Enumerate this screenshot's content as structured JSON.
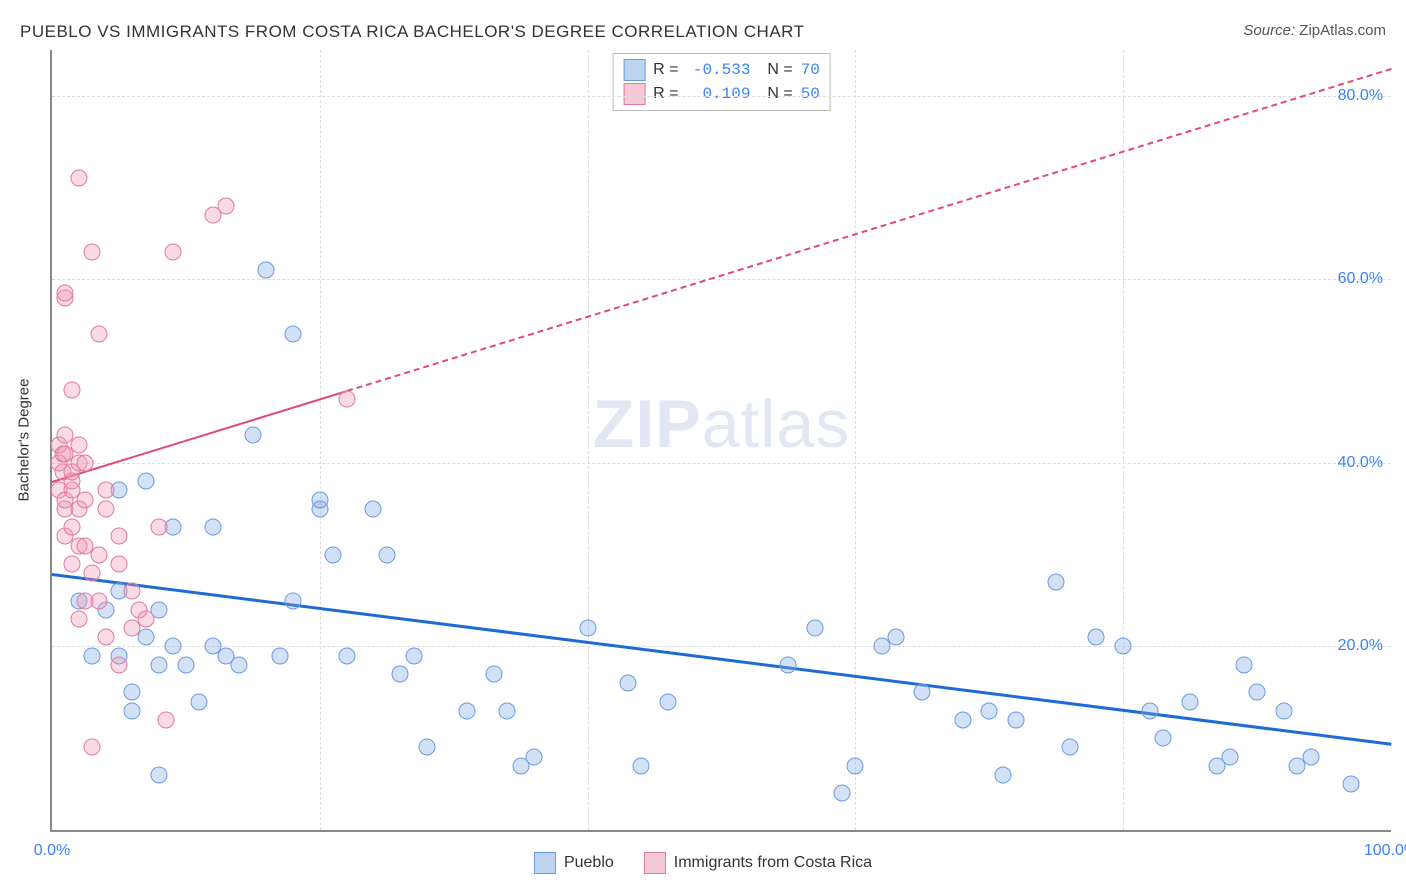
{
  "title": "PUEBLO VS IMMIGRANTS FROM COSTA RICA BACHELOR'S DEGREE CORRELATION CHART",
  "source_label": "Source:",
  "source_value": "ZipAtlas.com",
  "ylabel": "Bachelor's Degree",
  "watermark_bold": "ZIP",
  "watermark_rest": "atlas",
  "chart": {
    "type": "scatter",
    "background_color": "#ffffff",
    "grid_color": "#dddddd",
    "axis_color": "#888888",
    "xlim": [
      0,
      100
    ],
    "ylim": [
      0,
      85
    ],
    "xtick_min_label": "0.0%",
    "xtick_max_label": "100.0%",
    "yticks": [
      {
        "value": 20,
        "label": "20.0%"
      },
      {
        "value": 40,
        "label": "40.0%"
      },
      {
        "value": 60,
        "label": "60.0%"
      },
      {
        "value": 80,
        "label": "80.0%"
      }
    ],
    "xgrid_positions": [
      20,
      40,
      60,
      80
    ],
    "marker_size": 17,
    "marker_border_width": 1.5,
    "series": [
      {
        "name": "Pueblo",
        "fill_color": "rgba(130, 170, 230, 0.35)",
        "stroke_color": "#6a9be0",
        "swatch_fill": "#bcd4f0",
        "swatch_border": "#6a9be0",
        "R": "-0.533",
        "N": "70",
        "trend": {
          "x1": 0,
          "y1": 28,
          "x2": 100,
          "y2": 9.5,
          "color": "#1e6bd6",
          "width": 3,
          "solid_until_x": 100
        },
        "points": [
          [
            2,
            25
          ],
          [
            3,
            19
          ],
          [
            4,
            24
          ],
          [
            5,
            19
          ],
          [
            5,
            26
          ],
          [
            5,
            37
          ],
          [
            6,
            13
          ],
          [
            6,
            15
          ],
          [
            7,
            21
          ],
          [
            7,
            38
          ],
          [
            8,
            6
          ],
          [
            8,
            18
          ],
          [
            8,
            24
          ],
          [
            9,
            20
          ],
          [
            9,
            33
          ],
          [
            10,
            18
          ],
          [
            11,
            14
          ],
          [
            12,
            20
          ],
          [
            12,
            33
          ],
          [
            13,
            19
          ],
          [
            14,
            18
          ],
          [
            15,
            43
          ],
          [
            16,
            61
          ],
          [
            17,
            19
          ],
          [
            18,
            25
          ],
          [
            18,
            54
          ],
          [
            20,
            35
          ],
          [
            20,
            36
          ],
          [
            21,
            30
          ],
          [
            22,
            19
          ],
          [
            24,
            35
          ],
          [
            25,
            30
          ],
          [
            26,
            17
          ],
          [
            27,
            19
          ],
          [
            28,
            9
          ],
          [
            31,
            13
          ],
          [
            33,
            17
          ],
          [
            34,
            13
          ],
          [
            35,
            7
          ],
          [
            36,
            8
          ],
          [
            40,
            22
          ],
          [
            43,
            16
          ],
          [
            44,
            7
          ],
          [
            46,
            14
          ],
          [
            55,
            18
          ],
          [
            57,
            22
          ],
          [
            59,
            4
          ],
          [
            60,
            7
          ],
          [
            62,
            20
          ],
          [
            63,
            21
          ],
          [
            65,
            15
          ],
          [
            68,
            12
          ],
          [
            70,
            13
          ],
          [
            71,
            6
          ],
          [
            72,
            12
          ],
          [
            75,
            27
          ],
          [
            76,
            9
          ],
          [
            78,
            21
          ],
          [
            80,
            20
          ],
          [
            82,
            13
          ],
          [
            83,
            10
          ],
          [
            85,
            14
          ],
          [
            87,
            7
          ],
          [
            88,
            8
          ],
          [
            89,
            18
          ],
          [
            90,
            15
          ],
          [
            92,
            13
          ],
          [
            93,
            7
          ],
          [
            94,
            8
          ],
          [
            97,
            5
          ]
        ]
      },
      {
        "name": "Immigrants from Costa Rica",
        "fill_color": "rgba(240, 150, 180, 0.35)",
        "stroke_color": "#e07aa0",
        "swatch_fill": "#f5c9d8",
        "swatch_border": "#e07aa0",
        "R": "0.109",
        "N": "50",
        "trend": {
          "x1": 0,
          "y1": 38,
          "x2": 100,
          "y2": 83,
          "color": "#e04a7a",
          "width": 2.5,
          "solid_until_x": 22
        },
        "points": [
          [
            0.5,
            37
          ],
          [
            0.5,
            40
          ],
          [
            0.5,
            42
          ],
          [
            0.8,
            39
          ],
          [
            0.8,
            41
          ],
          [
            1,
            32
          ],
          [
            1,
            35
          ],
          [
            1,
            36
          ],
          [
            1,
            43
          ],
          [
            1,
            58
          ],
          [
            1,
            58.5
          ],
          [
            1,
            41
          ],
          [
            1.5,
            29
          ],
          [
            1.5,
            33
          ],
          [
            1.5,
            37
          ],
          [
            1.5,
            38
          ],
          [
            1.5,
            39
          ],
          [
            1.5,
            48
          ],
          [
            2,
            23
          ],
          [
            2,
            31
          ],
          [
            2,
            35
          ],
          [
            2,
            40
          ],
          [
            2,
            42
          ],
          [
            2,
            71
          ],
          [
            2.5,
            25
          ],
          [
            2.5,
            31
          ],
          [
            2.5,
            36
          ],
          [
            2.5,
            40
          ],
          [
            3,
            9
          ],
          [
            3,
            28
          ],
          [
            3,
            63
          ],
          [
            3.5,
            25
          ],
          [
            3.5,
            30
          ],
          [
            3.5,
            54
          ],
          [
            4,
            21
          ],
          [
            4,
            35
          ],
          [
            4,
            37
          ],
          [
            5,
            18
          ],
          [
            5,
            29
          ],
          [
            5,
            32
          ],
          [
            6,
            22
          ],
          [
            6,
            26
          ],
          [
            6.5,
            24
          ],
          [
            7,
            23
          ],
          [
            8,
            33
          ],
          [
            8.5,
            12
          ],
          [
            9,
            63
          ],
          [
            12,
            67
          ],
          [
            13,
            68
          ],
          [
            22,
            47
          ]
        ]
      }
    ]
  },
  "bottom_legend": {
    "items": [
      "Pueblo",
      "Immigrants from Costa Rica"
    ]
  }
}
